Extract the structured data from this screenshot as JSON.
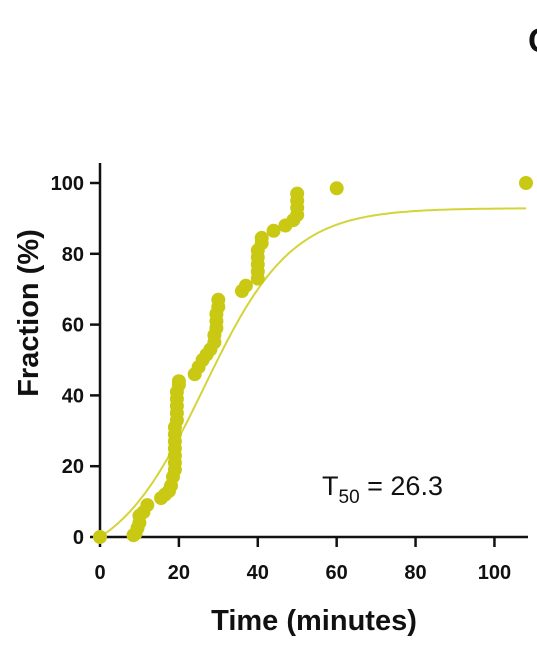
{
  "panel_label": "C",
  "colors": {
    "series": "#c9c914",
    "fit": "#d4d43a",
    "axis": "#111111"
  },
  "chart_data": {
    "type": "scatter",
    "xlabel": "Time (minutes)",
    "ylabel": "Fraction (%)",
    "xlim": [
      0,
      108
    ],
    "ylim": [
      0,
      100
    ],
    "xticks": [
      0,
      20,
      40,
      60,
      80,
      100
    ],
    "yticks": [
      0,
      20,
      40,
      60,
      80,
      100
    ],
    "grid": false,
    "annotation": {
      "base": "T",
      "subscript": "50",
      "value": " = 26.3"
    },
    "series": [
      {
        "points": [
          [
            0,
            0
          ],
          [
            8.5,
            0.5
          ],
          [
            9,
            1
          ],
          [
            9.5,
            2.5
          ],
          [
            10,
            4
          ],
          [
            10,
            6
          ],
          [
            11,
            7
          ],
          [
            12,
            9
          ],
          [
            15.5,
            11
          ],
          [
            16.5,
            12
          ],
          [
            17.5,
            13
          ],
          [
            18,
            14.5
          ],
          [
            18.5,
            17
          ],
          [
            19,
            19
          ],
          [
            19,
            21
          ],
          [
            19,
            23
          ],
          [
            19,
            25
          ],
          [
            19,
            27
          ],
          [
            19,
            29
          ],
          [
            19,
            31
          ],
          [
            19.5,
            33
          ],
          [
            19.5,
            35
          ],
          [
            19.5,
            37
          ],
          [
            19.5,
            39
          ],
          [
            19.5,
            41
          ],
          [
            20,
            43
          ],
          [
            20,
            44
          ],
          [
            24,
            46
          ],
          [
            25,
            48
          ],
          [
            26,
            50
          ],
          [
            27,
            51.5
          ],
          [
            28,
            53
          ],
          [
            29,
            55
          ],
          [
            29,
            57
          ],
          [
            29.5,
            59
          ],
          [
            29.5,
            61
          ],
          [
            29.5,
            63
          ],
          [
            30,
            65
          ],
          [
            30,
            67
          ],
          [
            36,
            69.5
          ],
          [
            37,
            71
          ],
          [
            40,
            73
          ],
          [
            40,
            75
          ],
          [
            40,
            77
          ],
          [
            40,
            79
          ],
          [
            40,
            81
          ],
          [
            41,
            83
          ],
          [
            41,
            84.5
          ],
          [
            44,
            86.5
          ],
          [
            47,
            88
          ],
          [
            49,
            89.5
          ],
          [
            50,
            91
          ],
          [
            50,
            93
          ],
          [
            50,
            95
          ],
          [
            50,
            97
          ],
          [
            60,
            98.5
          ],
          [
            108,
            100
          ]
        ]
      }
    ],
    "fit_curve": {
      "type": "sigmoid",
      "T50": 26.3,
      "top": 101.6
    }
  }
}
